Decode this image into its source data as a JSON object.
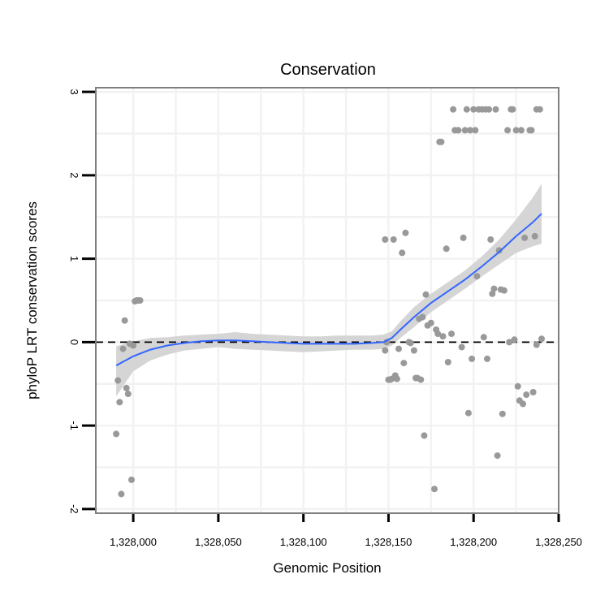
{
  "chart_data": {
    "type": "scatter",
    "title": "Conservation",
    "xlabel": "Genomic Position",
    "ylabel": "phyloP LRT conservation scores",
    "xlim": [
      1327978,
      1328250
    ],
    "ylim": [
      -2.05,
      3.05
    ],
    "x_ticks": [
      1328000,
      1328050,
      1328100,
      1328150,
      1328200,
      1328250
    ],
    "x_tick_labels": [
      "1,328,000",
      "1,328,050",
      "1,328,100",
      "1,328,150",
      "1,328,200",
      "1,328,250"
    ],
    "y_ticks": [
      -2,
      -1,
      0,
      1,
      2,
      3
    ],
    "y_tick_labels": [
      "-2",
      "-1",
      "0",
      "1",
      "2",
      "3"
    ],
    "reference_line": 0,
    "grid": true,
    "points": [
      [
        1327990,
        -1.1
      ],
      [
        1327991,
        -0.46
      ],
      [
        1327992,
        -0.72
      ],
      [
        1327993,
        -1.82
      ],
      [
        1327994,
        -0.08
      ],
      [
        1327995,
        0.26
      ],
      [
        1327996,
        -0.55
      ],
      [
        1327997,
        -0.62
      ],
      [
        1327998,
        -0.02
      ],
      [
        1327999,
        -1.65
      ],
      [
        1328000,
        -0.04
      ],
      [
        1328001,
        0.49
      ],
      [
        1328002,
        0.5
      ],
      [
        1328003,
        0.5
      ],
      [
        1328004,
        0.5
      ],
      [
        1328148,
        -0.1
      ],
      [
        1328148,
        1.23
      ],
      [
        1328149,
        0.0
      ],
      [
        1328150,
        -0.45
      ],
      [
        1328151,
        -0.45
      ],
      [
        1328152,
        -0.44
      ],
      [
        1328153,
        1.23
      ],
      [
        1328154,
        -0.4
      ],
      [
        1328155,
        -0.44
      ],
      [
        1328156,
        -0.08
      ],
      [
        1328158,
        1.07
      ],
      [
        1328159,
        -0.25
      ],
      [
        1328160,
        1.31
      ],
      [
        1328162,
        0.0
      ],
      [
        1328163,
        -0.01
      ],
      [
        1328165,
        -0.1
      ],
      [
        1328166,
        -0.43
      ],
      [
        1328167,
        -0.43
      ],
      [
        1328168,
        0.28
      ],
      [
        1328169,
        -0.45
      ],
      [
        1328170,
        0.3
      ],
      [
        1328171,
        -1.12
      ],
      [
        1328172,
        0.57
      ],
      [
        1328173,
        0.2
      ],
      [
        1328175,
        0.23
      ],
      [
        1328177,
        -1.76
      ],
      [
        1328178,
        0.15
      ],
      [
        1328179,
        0.1
      ],
      [
        1328180,
        2.4
      ],
      [
        1328181,
        2.4
      ],
      [
        1328182,
        0.07
      ],
      [
        1328184,
        1.12
      ],
      [
        1328185,
        -0.24
      ],
      [
        1328187,
        0.1
      ],
      [
        1328188,
        2.79
      ],
      [
        1328189,
        2.54
      ],
      [
        1328191,
        2.54
      ],
      [
        1328193,
        -0.06
      ],
      [
        1328194,
        1.25
      ],
      [
        1328195,
        2.54
      ],
      [
        1328196,
        2.79
      ],
      [
        1328197,
        -0.85
      ],
      [
        1328198,
        2.54
      ],
      [
        1328199,
        -0.2
      ],
      [
        1328200,
        2.79
      ],
      [
        1328201,
        2.54
      ],
      [
        1328202,
        0.79
      ],
      [
        1328203,
        2.79
      ],
      [
        1328205,
        2.79
      ],
      [
        1328206,
        0.06
      ],
      [
        1328207,
        2.79
      ],
      [
        1328208,
        -0.2
      ],
      [
        1328209,
        2.79
      ],
      [
        1328210,
        1.23
      ],
      [
        1328211,
        0.58
      ],
      [
        1328212,
        0.64
      ],
      [
        1328213,
        2.79
      ],
      [
        1328214,
        -1.36
      ],
      [
        1328215,
        1.1
      ],
      [
        1328216,
        0.63
      ],
      [
        1328217,
        -0.86
      ],
      [
        1328218,
        0.62
      ],
      [
        1328220,
        2.54
      ],
      [
        1328221,
        0.0
      ],
      [
        1328222,
        2.79
      ],
      [
        1328223,
        2.79
      ],
      [
        1328224,
        0.03
      ],
      [
        1328225,
        2.54
      ],
      [
        1328226,
        -0.53
      ],
      [
        1328227,
        -0.7
      ],
      [
        1328228,
        2.54
      ],
      [
        1328229,
        -0.74
      ],
      [
        1328230,
        1.25
      ],
      [
        1328231,
        -0.63
      ],
      [
        1328233,
        2.54
      ],
      [
        1328234,
        2.54
      ],
      [
        1328235,
        -0.6
      ],
      [
        1328236,
        1.27
      ],
      [
        1328237,
        2.79
      ],
      [
        1328237,
        -0.03
      ],
      [
        1328239,
        2.79
      ],
      [
        1328240,
        0.04
      ]
    ],
    "smooth_line": [
      [
        1327990,
        -0.28
      ],
      [
        1328000,
        -0.17
      ],
      [
        1328010,
        -0.09
      ],
      [
        1328020,
        -0.04
      ],
      [
        1328030,
        -0.01
      ],
      [
        1328040,
        0.01
      ],
      [
        1328050,
        0.02
      ],
      [
        1328060,
        0.02
      ],
      [
        1328070,
        0.01
      ],
      [
        1328080,
        0.0
      ],
      [
        1328090,
        -0.01
      ],
      [
        1328100,
        -0.02
      ],
      [
        1328110,
        -0.02
      ],
      [
        1328120,
        -0.02
      ],
      [
        1328130,
        -0.02
      ],
      [
        1328140,
        -0.01
      ],
      [
        1328147,
        0.0
      ],
      [
        1328152,
        0.05
      ],
      [
        1328157,
        0.15
      ],
      [
        1328165,
        0.3
      ],
      [
        1328175,
        0.47
      ],
      [
        1328185,
        0.61
      ],
      [
        1328195,
        0.75
      ],
      [
        1328205,
        0.91
      ],
      [
        1328215,
        1.08
      ],
      [
        1328225,
        1.27
      ],
      [
        1328235,
        1.44
      ],
      [
        1328240,
        1.54
      ]
    ],
    "confidence_band": {
      "upper": [
        [
          1327990,
          -0.05
        ],
        [
          1328000,
          0.01
        ],
        [
          1328010,
          0.05
        ],
        [
          1328020,
          0.06
        ],
        [
          1328030,
          0.08
        ],
        [
          1328040,
          0.09
        ],
        [
          1328050,
          0.1
        ],
        [
          1328060,
          0.12
        ],
        [
          1328070,
          0.1
        ],
        [
          1328080,
          0.09
        ],
        [
          1328090,
          0.08
        ],
        [
          1328100,
          0.07
        ],
        [
          1328110,
          0.07
        ],
        [
          1328120,
          0.08
        ],
        [
          1328130,
          0.08
        ],
        [
          1328140,
          0.08
        ],
        [
          1328147,
          0.09
        ],
        [
          1328152,
          0.13
        ],
        [
          1328157,
          0.25
        ],
        [
          1328165,
          0.42
        ],
        [
          1328175,
          0.58
        ],
        [
          1328185,
          0.72
        ],
        [
          1328195,
          0.86
        ],
        [
          1328205,
          1.03
        ],
        [
          1328215,
          1.23
        ],
        [
          1328225,
          1.47
        ],
        [
          1328235,
          1.74
        ],
        [
          1328240,
          1.9
        ]
      ],
      "lower": [
        [
          1327990,
          -0.65
        ],
        [
          1328000,
          -0.35
        ],
        [
          1328010,
          -0.22
        ],
        [
          1328020,
          -0.15
        ],
        [
          1328030,
          -0.1
        ],
        [
          1328040,
          -0.08
        ],
        [
          1328050,
          -0.06
        ],
        [
          1328060,
          -0.08
        ],
        [
          1328070,
          -0.09
        ],
        [
          1328080,
          -0.1
        ],
        [
          1328090,
          -0.11
        ],
        [
          1328100,
          -0.12
        ],
        [
          1328110,
          -0.11
        ],
        [
          1328120,
          -0.1
        ],
        [
          1328130,
          -0.09
        ],
        [
          1328140,
          -0.09
        ],
        [
          1328147,
          -0.08
        ],
        [
          1328152,
          -0.04
        ],
        [
          1328157,
          0.05
        ],
        [
          1328165,
          0.18
        ],
        [
          1328175,
          0.36
        ],
        [
          1328185,
          0.5
        ],
        [
          1328195,
          0.64
        ],
        [
          1328205,
          0.79
        ],
        [
          1328215,
          0.93
        ],
        [
          1328225,
          1.07
        ],
        [
          1328235,
          1.15
        ],
        [
          1328240,
          1.18
        ]
      ]
    },
    "colors": {
      "points": "#999999",
      "smooth": "#3366ff",
      "band": "#d3d3d3",
      "grid": "#f2f2f2",
      "frame": "#7f7f7f",
      "reference": "#000000"
    }
  }
}
